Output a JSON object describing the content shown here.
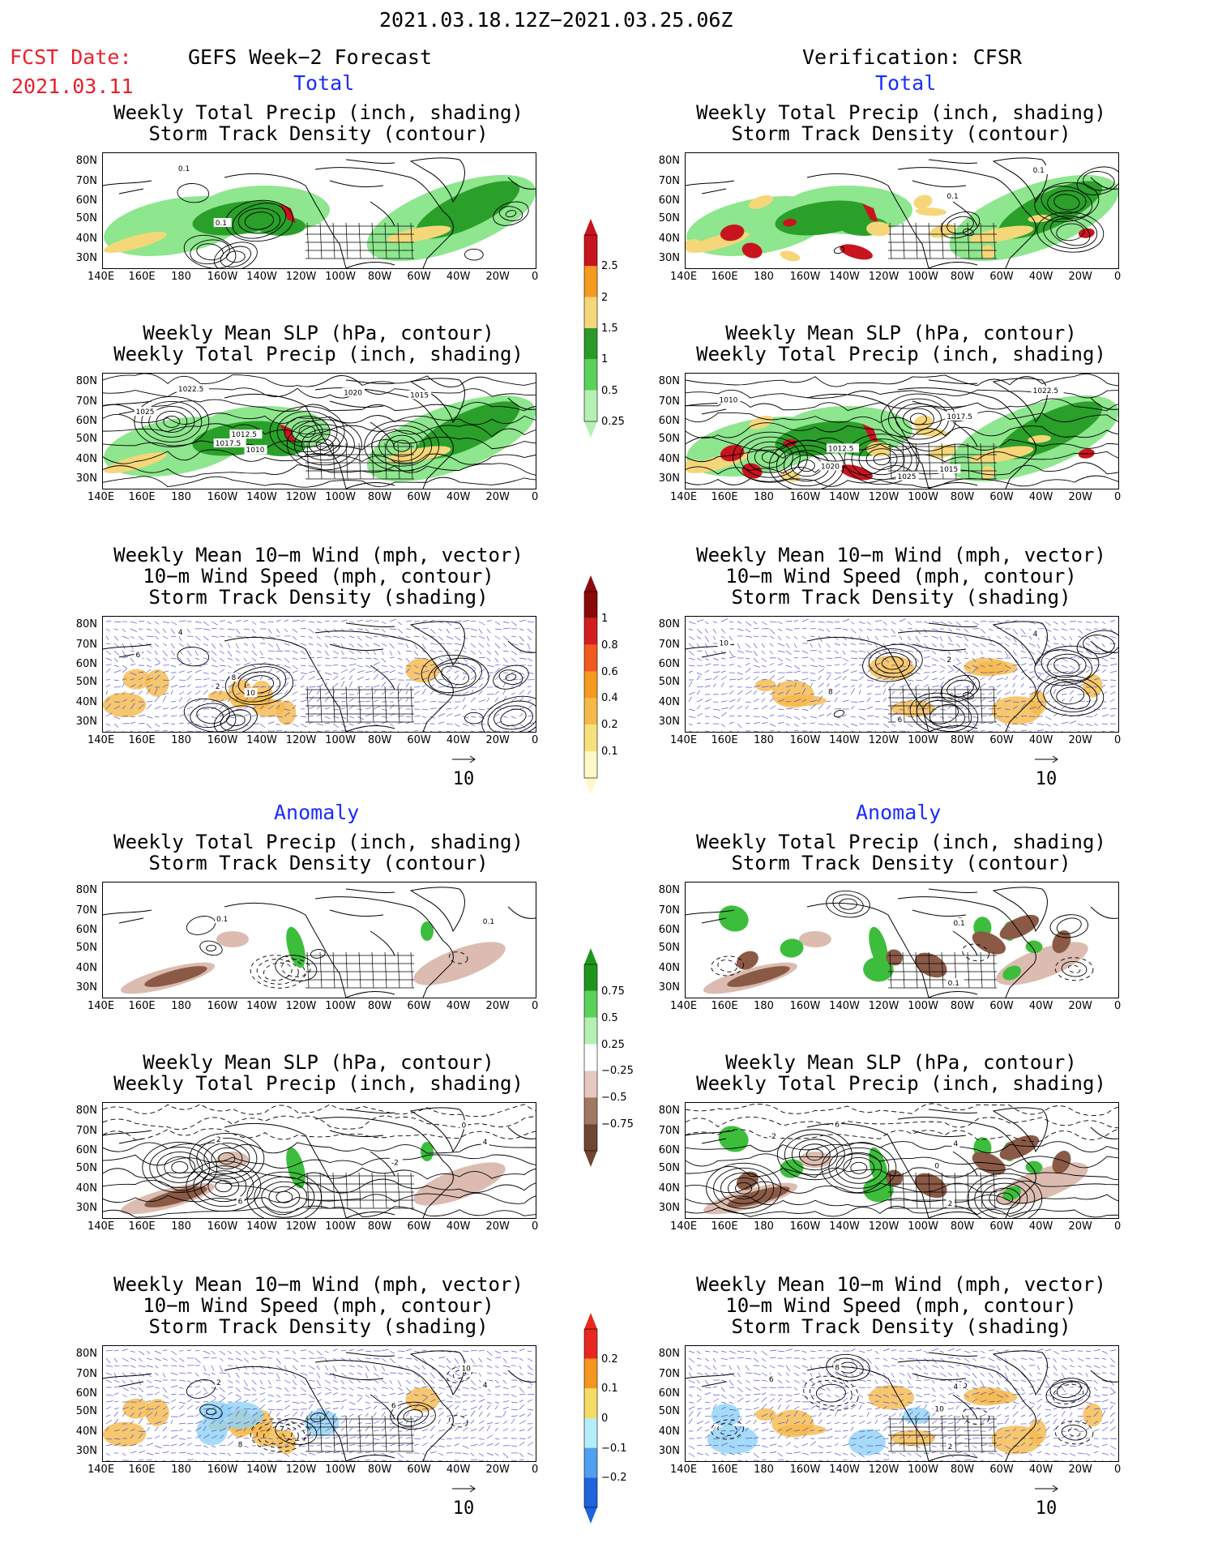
{
  "header": {
    "date_range": "2021.03.18.12Z−2021.03.25.06Z",
    "fcst_label": "FCST Date:",
    "fcst_date": "2021.03.11",
    "left_title": "GEFS Week−2 Forecast",
    "right_title": "Verification: CFSR"
  },
  "sections": {
    "total": "Total",
    "anomaly": "Anomaly"
  },
  "panel_titles": {
    "precip_track": [
      "Weekly Total Precip (inch, shading)",
      "Storm Track Density (contour)"
    ],
    "slp_precip": [
      "Weekly Mean SLP (hPa, contour)",
      "Weekly Total Precip (inch, shading)"
    ],
    "wind_track": [
      "Weekly Mean 10−m Wind (mph, vector)",
      "10−m Wind Speed (mph, contour)",
      "Storm Track Density (shading)"
    ]
  },
  "axes": {
    "lat_labels": [
      "80N",
      "70N",
      "60N",
      "50N",
      "40N",
      "30N"
    ],
    "lon_labels": [
      "140E",
      "160E",
      "180",
      "160W",
      "140W",
      "120W",
      "100W",
      "80W",
      "60W",
      "40W",
      "20W",
      "0"
    ]
  },
  "vector_ref": "10",
  "colorbars": {
    "precip_total": {
      "labels": [
        "2.5",
        "2",
        "1.5",
        "1",
        "0.5",
        "0.25"
      ],
      "colors": [
        "#c8141e",
        "#f59a1e",
        "#f5d77a",
        "#2a9a2a",
        "#5ad25a",
        "#b4f0b4"
      ]
    },
    "track_total": {
      "labels": [
        "1",
        "0.8",
        "0.6",
        "0.4",
        "0.2",
        "0.1"
      ],
      "colors": [
        "#8b0a0a",
        "#d21e1e",
        "#f05a1e",
        "#f59a1e",
        "#f5b94a",
        "#f5e27a",
        "#fff8c8"
      ]
    },
    "precip_anom": {
      "labels": [
        "0.75",
        "0.5",
        "0.25",
        "−0.25",
        "−0.5",
        "−0.75"
      ],
      "colors": [
        "#1e961e",
        "#5ad25a",
        "#b4f0b4",
        "#ffffff",
        "#e6c8be",
        "#a07864",
        "#6e4632"
      ]
    },
    "track_anom": {
      "labels": [
        "0.2",
        "0.1",
        "0",
        "−0.1",
        "−0.2"
      ],
      "colors": [
        "#e8281e",
        "#f5961e",
        "#f5dc64",
        "#b4eefa",
        "#50a0f0",
        "#1e64dc"
      ]
    },
    "colors_note": "",
    "ticks": ""
  },
  "panel_colors": {
    "precip_light": "#8ee68e",
    "precip_mid": "#2aa02a",
    "precip_heavy": "#f5d77a",
    "precip_peak": "#c8141e",
    "anom_dry": "#8a5a46",
    "anom_dry_light": "#dcbcb0",
    "anom_wet": "#3cbe3c",
    "wind_vector": "#3a3ad2",
    "track_shade": "#f5b94a",
    "track_cold": "#8ed2f5"
  }
}
